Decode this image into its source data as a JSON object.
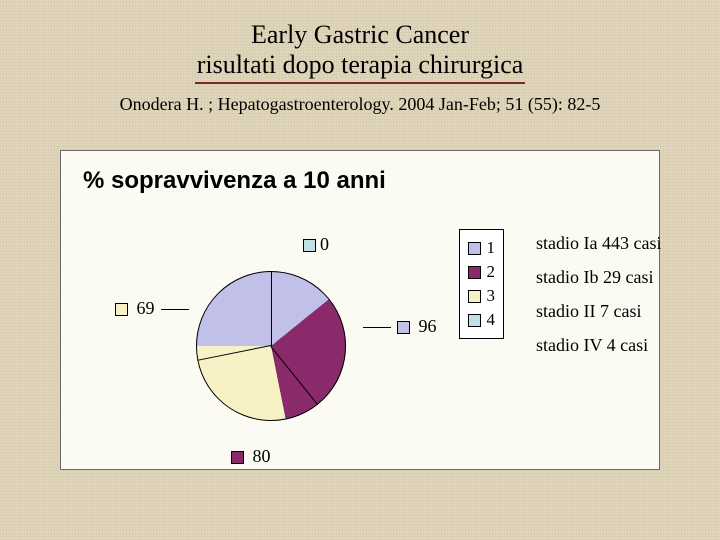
{
  "title": {
    "line1": "Early Gastric Cancer",
    "line2": "risultati dopo terapia chirurgica"
  },
  "citation": "Onodera H. ; Hepatogastroenterology. 2004 Jan-Feb; 51 (55): 82-5",
  "chart": {
    "type": "pie",
    "title": "% sopravvivenza a 10 anni",
    "background_color": "#fbfbf3",
    "slices": [
      {
        "id": 1,
        "label": "1",
        "value": 96,
        "color": "#c0c0e8"
      },
      {
        "id": 2,
        "label": "2",
        "value": 80,
        "color": "#8a2a6a"
      },
      {
        "id": 3,
        "label": "3",
        "value": 69,
        "color": "#f6f2c6"
      },
      {
        "id": 4,
        "label": "4",
        "value": 0,
        "color": "#c0e0e6"
      }
    ],
    "callouts": {
      "zero": {
        "swatch": "#c0e0e6",
        "text": "0"
      },
      "v96": {
        "swatch": "#c0c0e8",
        "text": "96"
      },
      "v80": {
        "swatch": "#8a2a6a",
        "text": "80"
      },
      "v69": {
        "swatch": "#f6f2c6",
        "text": "69"
      }
    },
    "legend": [
      {
        "color": "#c0c0e8",
        "label": "1"
      },
      {
        "color": "#8a2a6a",
        "label": "2"
      },
      {
        "color": "#f6f2c6",
        "label": "3"
      },
      {
        "color": "#c0e0e6",
        "label": "4"
      }
    ]
  },
  "annotations": [
    {
      "text": "stadio Ia  443 casi"
    },
    {
      "text": "stadio Ib  29 casi"
    },
    {
      "text": "stadio II   7 casi"
    },
    {
      "text": "stadio IV  4 casi"
    }
  ]
}
